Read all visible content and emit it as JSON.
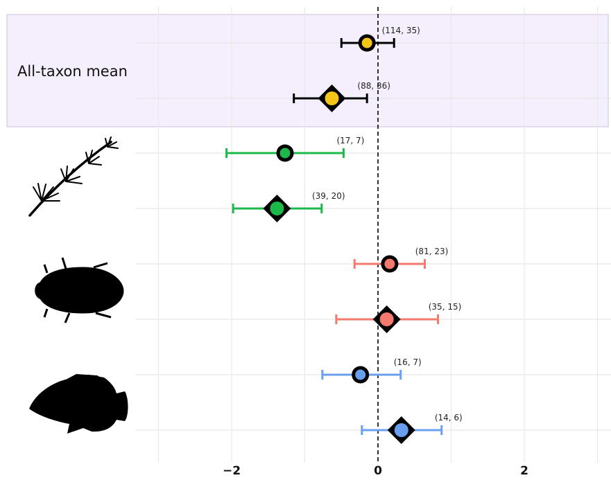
{
  "chart_data": {
    "type": "forest",
    "xlim": [
      -3.3,
      3.2
    ],
    "x_ticks": [
      -2,
      0,
      2
    ],
    "x_tick_labels": [
      "−2",
      "0",
      "2"
    ],
    "reference_line": 0,
    "grid": true,
    "highlight_label": "All-taxon mean",
    "colors": {
      "all": "#f5c518",
      "plant": "#1db84a",
      "insect": "#f47a6e",
      "fish": "#6a9ff0",
      "highlight_fill": "#f5eefc",
      "highlight_stroke": "#d9d3e6"
    },
    "groups": [
      {
        "name": "all",
        "icon": "",
        "rows": [
          {
            "marker": "circle",
            "estimate": -0.15,
            "ci": [
              -0.5,
              0.22
            ],
            "n_label": "(114, 35)",
            "color": "#f5c518",
            "bar_color": "#000000"
          },
          {
            "marker": "diamond",
            "estimate": -0.63,
            "ci": [
              -1.15,
              -0.15
            ],
            "n_label": "(88, 36)",
            "color": "#f5c518",
            "bar_color": "#000000"
          }
        ]
      },
      {
        "name": "plant",
        "icon": "plant-silhouette-icon",
        "rows": [
          {
            "marker": "circle",
            "estimate": -1.27,
            "ci": [
              -2.07,
              -0.47
            ],
            "n_label": "(17, 7)",
            "color": "#1db84a",
            "bar_color": "#1db84a"
          },
          {
            "marker": "diamond",
            "estimate": -1.38,
            "ci": [
              -1.98,
              -0.77
            ],
            "n_label": "(39, 20)",
            "color": "#1db84a",
            "bar_color": "#1db84a"
          }
        ]
      },
      {
        "name": "insect",
        "icon": "beetle-silhouette-icon",
        "rows": [
          {
            "marker": "circle",
            "estimate": 0.16,
            "ci": [
              -0.32,
              0.64
            ],
            "n_label": "(81, 23)",
            "color": "#f47a6e",
            "bar_color": "#f47a6e"
          },
          {
            "marker": "diamond",
            "estimate": 0.12,
            "ci": [
              -0.57,
              0.82
            ],
            "n_label": "(35, 15)",
            "color": "#f47a6e",
            "bar_color": "#f47a6e"
          }
        ]
      },
      {
        "name": "fish",
        "icon": "fish-silhouette-icon",
        "rows": [
          {
            "marker": "circle",
            "estimate": -0.24,
            "ci": [
              -0.76,
              0.31
            ],
            "n_label": "(16, 7)",
            "color": "#6a9ff0",
            "bar_color": "#6a9ff0"
          },
          {
            "marker": "diamond",
            "estimate": 0.32,
            "ci": [
              -0.22,
              0.87
            ],
            "n_label": "(14, 6)",
            "color": "#6a9ff0",
            "bar_color": "#6a9ff0"
          }
        ]
      }
    ]
  }
}
